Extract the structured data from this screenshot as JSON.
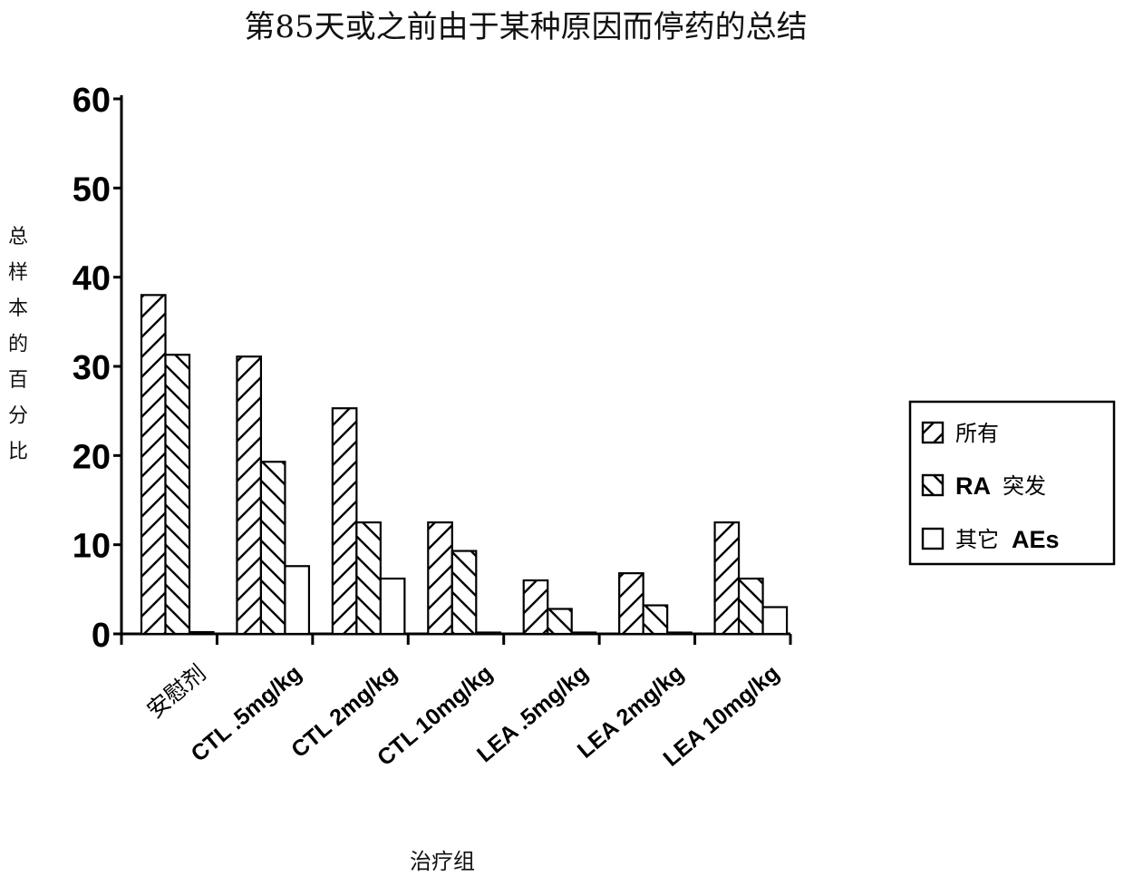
{
  "chart_data": {
    "type": "bar",
    "title": "第85天或之前由于某种原因而停药的总结",
    "ylabel": "总样本的百分比",
    "xlabel": "治疗组",
    "ylim": [
      0,
      60
    ],
    "yticks": [
      0,
      10,
      20,
      30,
      40,
      50,
      60
    ],
    "categories": [
      "安慰剂",
      "CTL .5mg/kg",
      "CTL 2mg/kg",
      "CTL 10mg/kg",
      "LEA .5mg/kg",
      "LEA 2mg/kg",
      "LEA 10mg/kg"
    ],
    "series": [
      {
        "name": "所有",
        "pattern": "forward-hatch",
        "values": [
          38,
          31.1,
          25.3,
          12.5,
          6,
          6.8,
          12.5
        ]
      },
      {
        "name": "RA 突发",
        "pattern": "back-hatch",
        "values": [
          31.3,
          19.3,
          12.5,
          9.3,
          2.8,
          3.2,
          6.2
        ]
      },
      {
        "name": "其它 AEs",
        "pattern": "empty",
        "values": [
          0.2,
          7.6,
          6.2,
          0.1,
          0,
          0,
          3
        ]
      }
    ],
    "legend": {
      "position": "right",
      "items": [
        {
          "prefix": "",
          "bold": "",
          "suffix": "所有"
        },
        {
          "prefix": "",
          "bold": "RA",
          "suffix": "突发"
        },
        {
          "prefix": "其它",
          "bold": "AEs",
          "suffix": ""
        }
      ]
    },
    "colors": {
      "bar_stroke": "#000000",
      "bar_fill": "#ffffff",
      "axis": "#000000"
    }
  }
}
